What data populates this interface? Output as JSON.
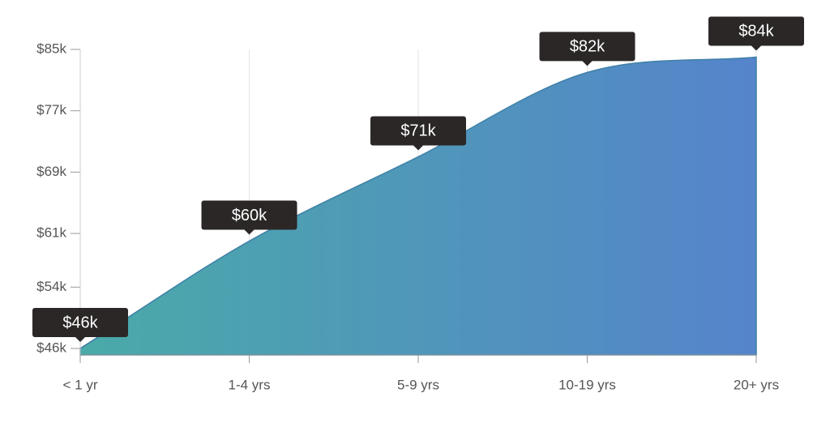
{
  "chart_data": {
    "type": "area",
    "categories": [
      "< 1 yr",
      "1-4 yrs",
      "5-9 yrs",
      "10-19 yrs",
      "20+ yrs"
    ],
    "values": [
      46000,
      60000,
      71000,
      82000,
      84000
    ],
    "value_labels": [
      "$46k",
      "$60k",
      "$71k",
      "$82k",
      "$84k"
    ],
    "colors": [
      "#4aaaa8",
      "#5584cb"
    ],
    "ylim": [
      46000,
      85000
    ],
    "yticks": [
      {
        "value": 46000,
        "label": "$46k"
      },
      {
        "value": 54000,
        "label": "$54k"
      },
      {
        "value": 61000,
        "label": "$61k"
      },
      {
        "value": 69000,
        "label": "$69k"
      },
      {
        "value": 77000,
        "label": "$77k"
      },
      {
        "value": 85000,
        "label": "$85k"
      }
    ],
    "grid": true
  }
}
